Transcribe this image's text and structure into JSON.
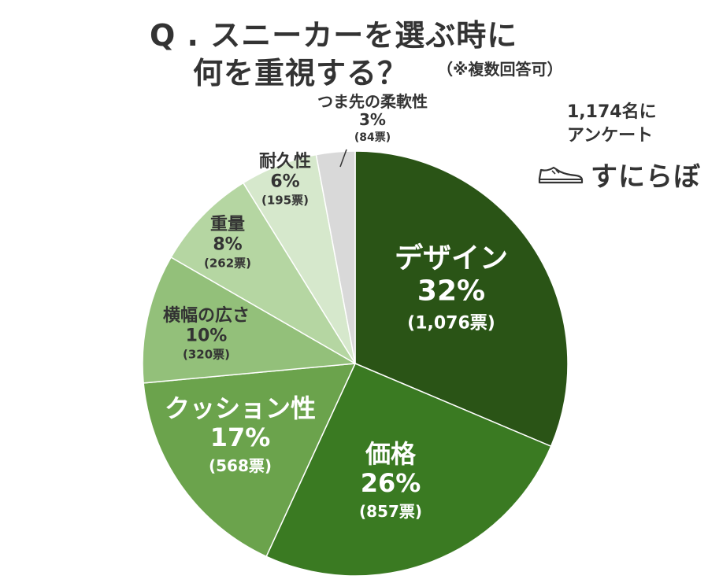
{
  "title": {
    "line1": "Q . スニーカーを選ぶ時に",
    "line2": "何を重視する？",
    "note": "（※複数回答可）"
  },
  "respondents": {
    "line1": "1,174名に",
    "line2": "アンケート"
  },
  "brand": {
    "name": "すにらぼ",
    "icon": "sneaker-icon"
  },
  "chart_data": {
    "type": "pie",
    "slices": [
      {
        "label": "デザイン",
        "value": 32,
        "percent": "32%",
        "votes": "(1,076票)",
        "color": "#2a5416",
        "text_color": "#ffffff"
      },
      {
        "label": "価格",
        "value": 26,
        "percent": "26%",
        "votes": "(857票)",
        "color": "#3a7a22",
        "text_color": "#ffffff"
      },
      {
        "label": "クッション性",
        "value": 17,
        "percent": "17%",
        "votes": "(568票)",
        "color": "#6ba34c",
        "text_color": "#ffffff"
      },
      {
        "label": "横幅の広さ",
        "value": 10,
        "percent": "10%",
        "votes": "(320票)",
        "color": "#93c07a",
        "text_color": "#333333"
      },
      {
        "label": "重量",
        "value": 8,
        "percent": "8%",
        "votes": "(262票)",
        "color": "#b5d6a2",
        "text_color": "#333333"
      },
      {
        "label": "耐久性",
        "value": 6,
        "percent": "6%",
        "votes": "(195票)",
        "color": "#d6e8cc",
        "text_color": "#333333"
      },
      {
        "label": "つま先の柔軟性",
        "value": 3,
        "percent": "3%",
        "votes": "(84票)",
        "color": "#d9d9d9",
        "text_color": "#333333"
      }
    ]
  }
}
